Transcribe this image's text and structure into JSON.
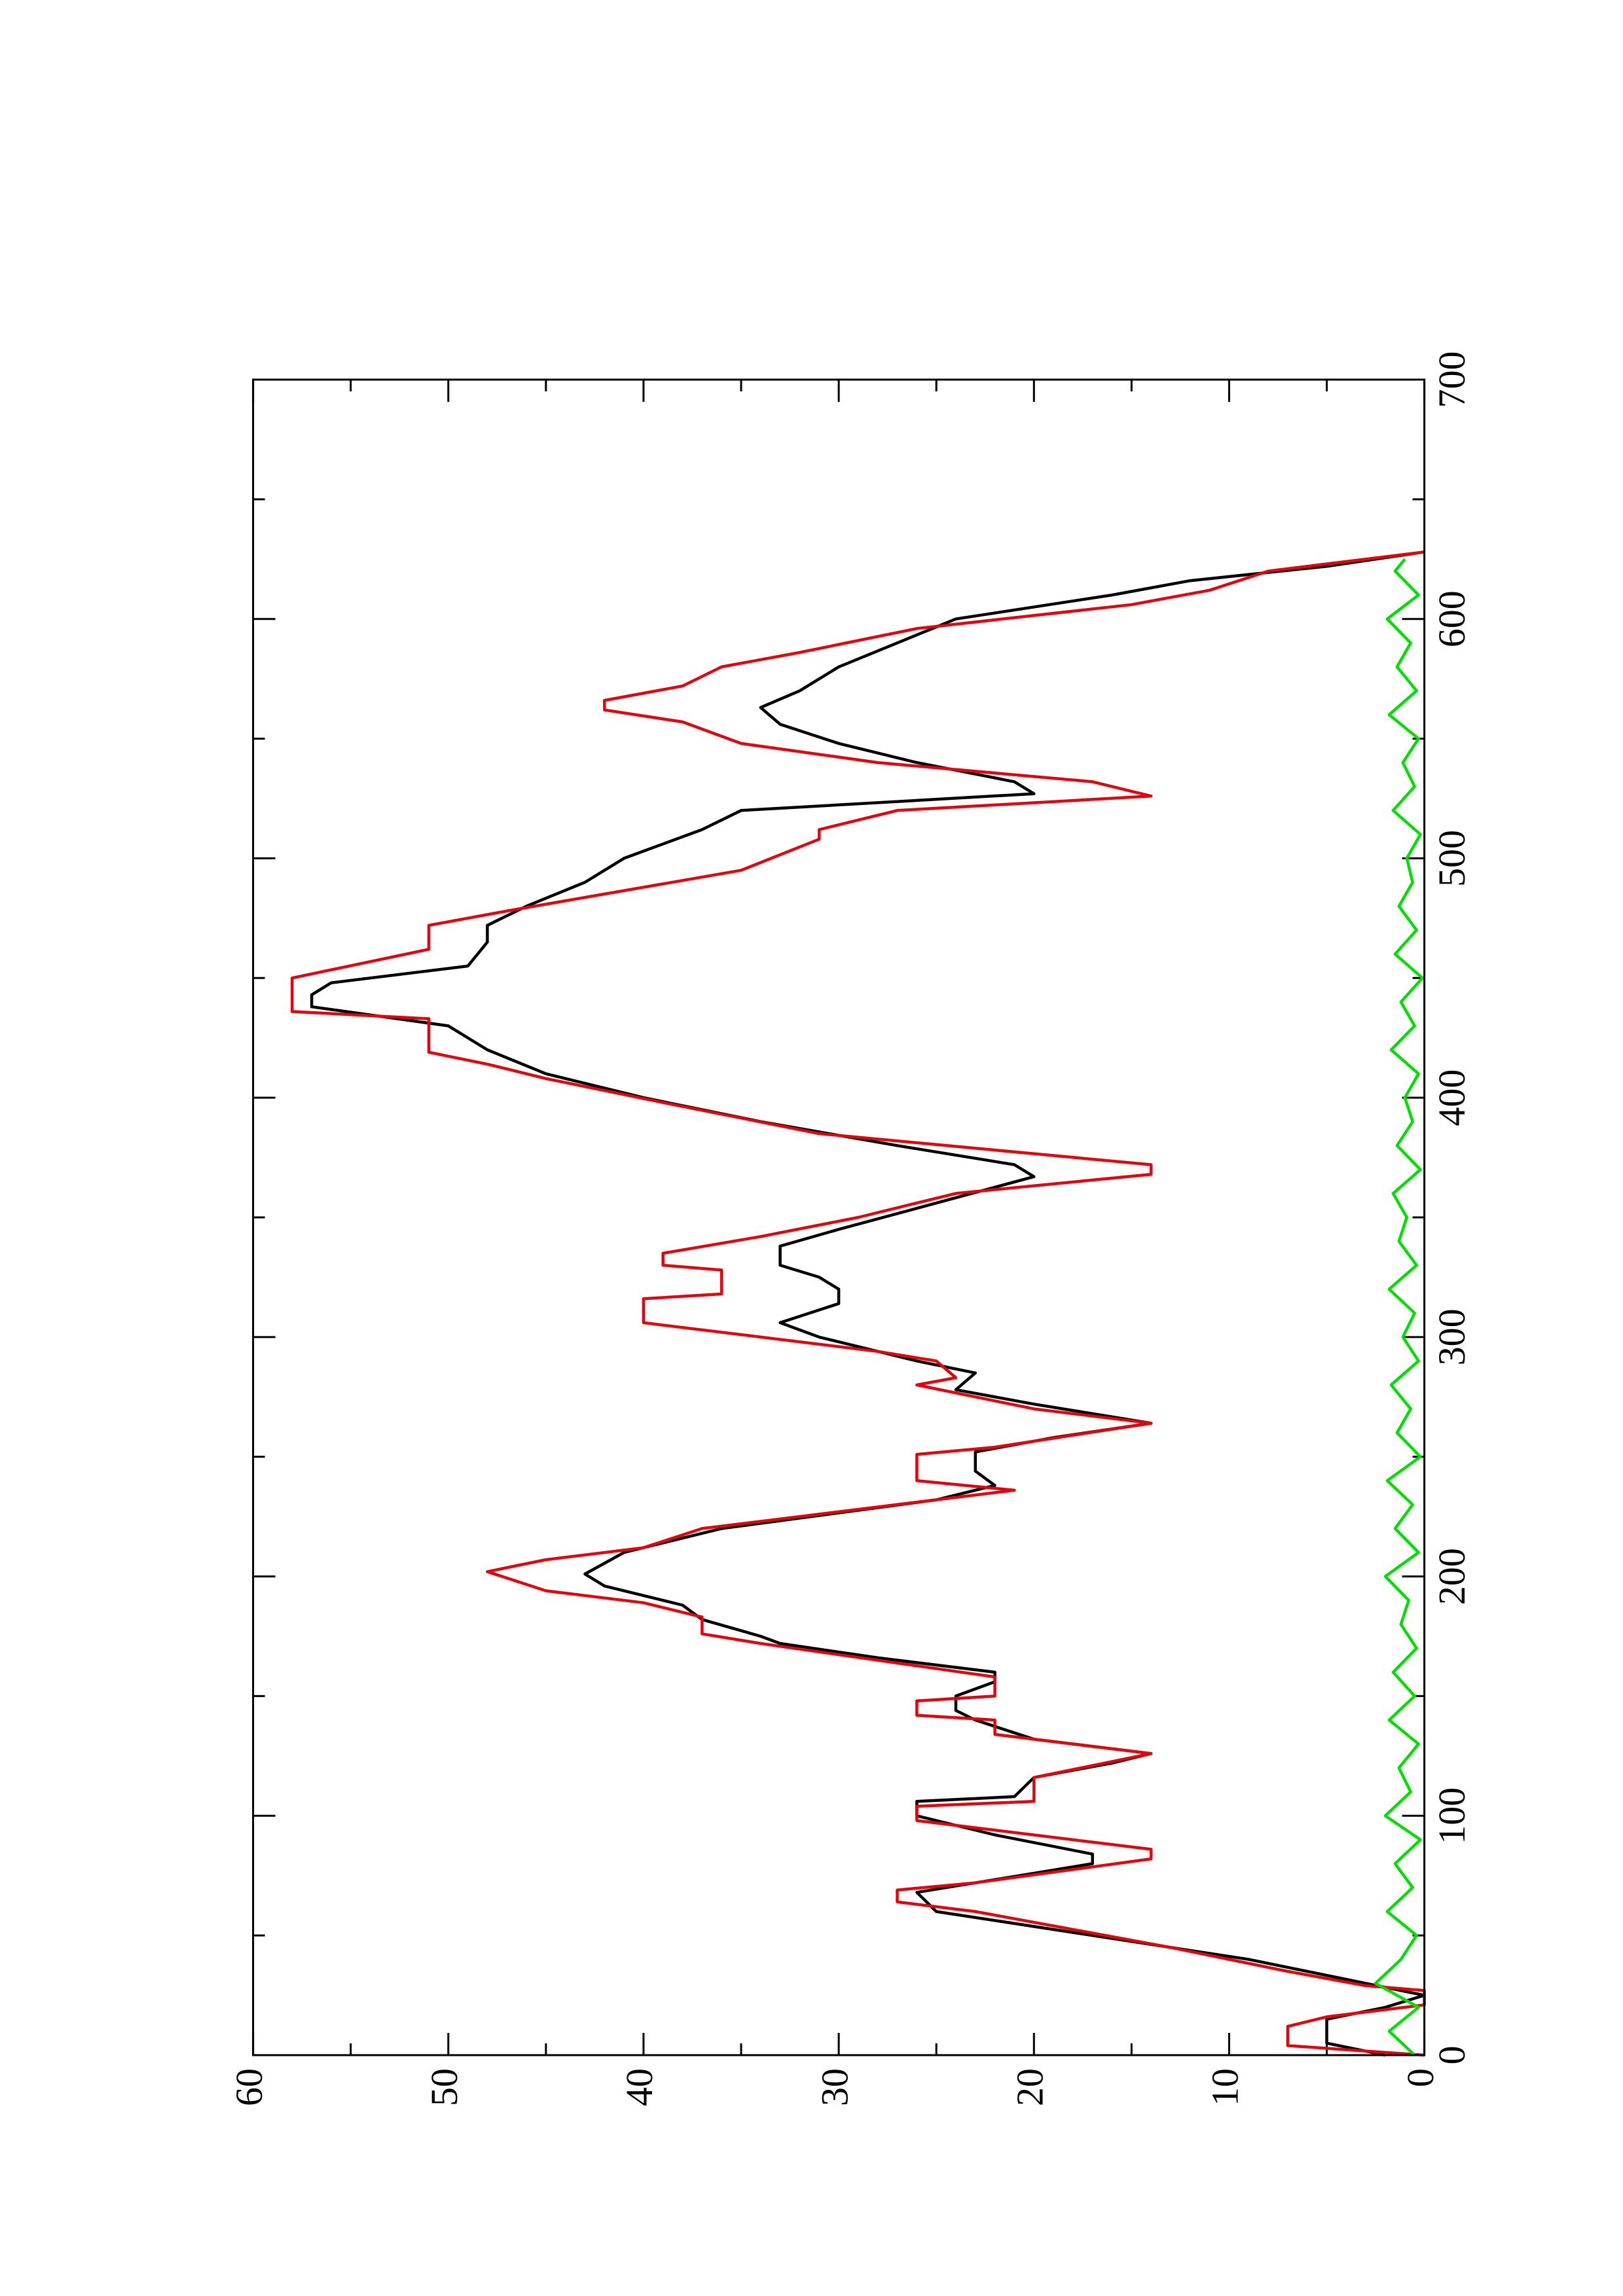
{
  "chart_data": {
    "type": "line",
    "xlim": [
      0,
      700
    ],
    "xticks": [
      0,
      100,
      200,
      300,
      400,
      500,
      600,
      700
    ],
    "xminorticks": [
      50,
      150,
      250,
      350,
      450,
      550,
      650
    ],
    "ylim": [
      0,
      60
    ],
    "yticks": [
      0,
      10,
      20,
      30,
      40,
      50,
      60
    ],
    "yminorticks": [
      5,
      15,
      25,
      35,
      45,
      55
    ],
    "grid": false,
    "series": [
      {
        "color": "#000000",
        "x": [
          0,
          5,
          15,
          20,
          25,
          30,
          40,
          50,
          60,
          68,
          72,
          80,
          84,
          92,
          100,
          106,
          108,
          116,
          122,
          126,
          132,
          140,
          144,
          150,
          156,
          160,
          166,
          172,
          175,
          182,
          188,
          196,
          201,
          210,
          220,
          232,
          238,
          244,
          252,
          258,
          264,
          272,
          278,
          285,
          290,
          300,
          306,
          314,
          320,
          325,
          330,
          338,
          345,
          356,
          367,
          372,
          380,
          390,
          400,
          410,
          420,
          430,
          438,
          443,
          448,
          455,
          465,
          472,
          480,
          490,
          500,
          512,
          520,
          527,
          532,
          540,
          548,
          556,
          563,
          570,
          580,
          590,
          600,
          610,
          616,
          622,
          628
        ],
        "values": [
          2,
          5,
          5,
          2,
          0,
          3,
          9,
          17,
          25,
          26,
          23,
          17,
          17,
          22,
          26,
          26,
          21,
          20,
          16,
          14,
          20,
          23,
          24,
          24,
          22,
          22,
          28,
          33,
          34,
          37,
          38,
          42,
          43,
          41,
          36,
          25,
          22,
          23,
          23,
          19,
          14,
          20,
          24,
          23,
          26,
          31,
          33,
          30,
          30,
          31,
          33,
          33,
          30,
          25,
          20,
          21,
          27,
          34,
          40,
          45,
          48,
          50,
          57,
          57,
          56,
          49,
          48,
          48,
          46,
          43,
          41,
          37,
          35,
          20,
          21,
          26,
          30,
          33,
          34,
          32,
          30,
          27,
          24,
          16,
          12,
          5,
          0
        ]
      },
      {
        "color": "#e8000b",
        "x": [
          0,
          4,
          12,
          16,
          21,
          27,
          29,
          35,
          45,
          60,
          64,
          69,
          72,
          82,
          86,
          98,
          104,
          106,
          116,
          126,
          130,
          134,
          140,
          142,
          148,
          150,
          158,
          172,
          176,
          183,
          189,
          194,
          202,
          207,
          212,
          220,
          232,
          236,
          240,
          251,
          254,
          264,
          270,
          280,
          283,
          290,
          294,
          306,
          316,
          318,
          328,
          330,
          335,
          342,
          350,
          360,
          368,
          372,
          385,
          398,
          408,
          414,
          419,
          433,
          436,
          450,
          462,
          472,
          478,
          495,
          508,
          512,
          520,
          526,
          532,
          540,
          548,
          557,
          562,
          566,
          572,
          580,
          586,
          596,
          606,
          612,
          620,
          628
        ],
        "values": [
          0,
          7,
          7,
          5,
          0,
          0,
          3,
          7,
          13,
          23,
          27,
          27,
          23,
          14,
          14,
          26,
          26,
          20,
          20,
          14,
          18,
          22,
          22,
          26,
          26,
          22,
          22,
          34,
          37,
          37,
          40,
          45,
          48,
          45,
          40,
          37,
          25,
          21,
          26,
          26,
          22,
          14,
          20,
          26,
          24,
          25,
          28,
          40,
          40,
          36,
          36,
          39,
          39,
          34,
          29,
          24,
          14,
          14,
          31,
          39,
          45,
          48,
          51,
          51,
          58,
          58,
          51,
          51,
          47,
          35,
          31,
          31,
          27,
          14,
          17,
          28,
          35,
          38,
          42,
          42,
          38,
          36,
          32,
          26,
          15,
          11,
          8,
          0
        ]
      },
      {
        "color": "#00e000",
        "x": [
          0,
          10,
          20,
          30,
          40,
          50,
          60,
          70,
          80,
          90,
          100,
          110,
          120,
          130,
          140,
          150,
          160,
          170,
          180,
          190,
          200,
          210,
          220,
          230,
          240,
          250,
          260,
          270,
          280,
          290,
          300,
          310,
          320,
          330,
          340,
          350,
          360,
          370,
          380,
          390,
          400,
          410,
          420,
          430,
          440,
          450,
          460,
          470,
          480,
          490,
          500,
          510,
          520,
          530,
          540,
          550,
          560,
          570,
          580,
          590,
          600,
          610,
          620,
          625
        ],
        "values": [
          0.5,
          1.8,
          0.3,
          2.5,
          1.2,
          0.4,
          1.9,
          0.6,
          1.5,
          0.2,
          2.0,
          0.7,
          1.3,
          0.3,
          1.8,
          0.5,
          1.6,
          0.4,
          1.2,
          0.8,
          2.0,
          0.3,
          1.5,
          0.6,
          1.9,
          0.2,
          1.4,
          0.7,
          1.7,
          0.3,
          1.1,
          0.5,
          1.8,
          0.4,
          1.3,
          0.9,
          1.6,
          0.2,
          1.4,
          0.6,
          1.0,
          0.3,
          1.7,
          0.5,
          1.2,
          0.1,
          1.5,
          0.4,
          1.3,
          0.6,
          0.9,
          0.2,
          1.6,
          0.5,
          1.1,
          0.3,
          1.8,
          0.4,
          1.4,
          0.7,
          1.9,
          0.3,
          1.5,
          1.0
        ]
      }
    ]
  }
}
